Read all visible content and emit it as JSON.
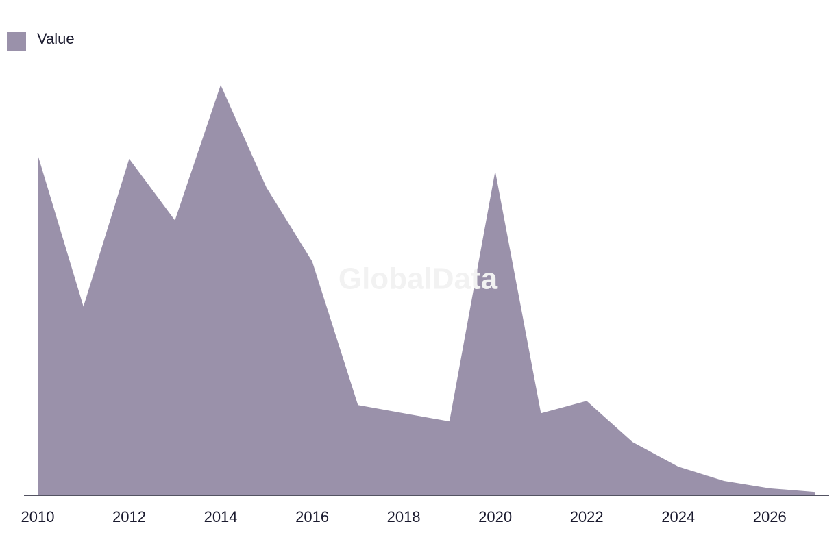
{
  "chart_data": {
    "type": "area",
    "watermark": "GlobalData",
    "x": [
      2010,
      2011,
      2012,
      2013,
      2014,
      2015,
      2016,
      2017,
      2018,
      2019,
      2020,
      2021,
      2022,
      2023,
      2024,
      2025,
      2026,
      2027
    ],
    "series": [
      {
        "name": "Value",
        "color": "#9a91aa",
        "values": [
          83,
          46,
          82,
          67,
          100,
          75,
          57,
          22,
          20,
          18,
          79,
          20,
          23,
          13,
          7,
          3.5,
          1.7,
          0.8
        ]
      }
    ],
    "xlim": [
      2010,
      2027
    ],
    "xticks": [
      2010,
      2012,
      2014,
      2016,
      2018,
      2020,
      2022,
      2024,
      2026
    ],
    "ylim": [
      0,
      100
    ],
    "legend": "top-left"
  }
}
